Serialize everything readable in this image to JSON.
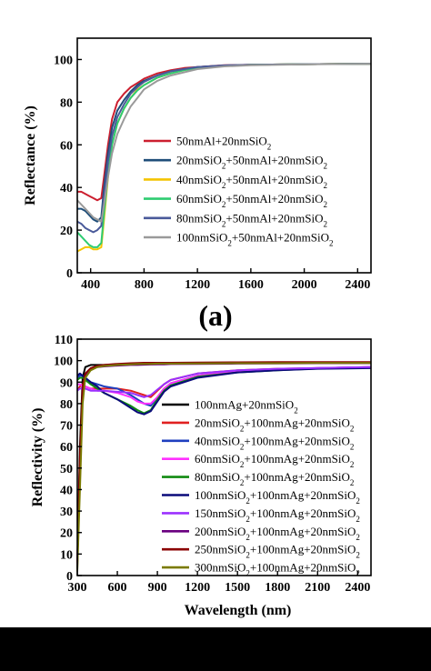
{
  "chart_data": [
    {
      "type": "line",
      "panel_label": "(a)",
      "xlabel": "",
      "ylabel": "Reflectance (%)",
      "xlim": [
        300,
        2500
      ],
      "ylim": [
        0,
        110
      ],
      "x_ticks": [
        400,
        800,
        1200,
        1600,
        2000,
        2400
      ],
      "y_ticks": [
        0,
        20,
        40,
        60,
        80,
        100
      ],
      "grid": false,
      "legend_position": "right",
      "x": [
        300,
        330,
        360,
        390,
        420,
        450,
        480,
        500,
        530,
        560,
        600,
        650,
        700,
        750,
        800,
        900,
        1000,
        1100,
        1200,
        1400,
        1600,
        2000,
        2500
      ],
      "series": [
        {
          "name": "50nmAl+20nmSiO2",
          "color": "#cc1f2f",
          "values": [
            38,
            38,
            37,
            36,
            35,
            34,
            35,
            45,
            60,
            72,
            80,
            84,
            87,
            89,
            91,
            93.5,
            95,
            96,
            96.5,
            97.3,
            97.5,
            97.8,
            98
          ]
        },
        {
          "name": "20nmSiO2+50nmAl+20nmSiO2",
          "color": "#1f4e79",
          "values": [
            30,
            30,
            29,
            27,
            25,
            24,
            26,
            40,
            56,
            68,
            76,
            81,
            85,
            88,
            90,
            92.5,
            94.5,
            95.5,
            96.5,
            97.2,
            97.5,
            97.8,
            98
          ]
        },
        {
          "name": "40nmSiO2+50nmAl+20nmSiO2",
          "color": "#f4c400",
          "values": [
            10,
            11,
            12,
            12,
            11,
            11,
            12,
            25,
            45,
            60,
            70,
            77,
            82,
            86,
            88,
            91.5,
            93.5,
            95,
            96,
            97,
            97.5,
            97.8,
            98
          ]
        },
        {
          "name": "60nmSiO2+50nmAl+20nmSiO2",
          "color": "#2ecc71",
          "values": [
            19,
            17,
            15,
            13,
            12,
            12,
            14,
            28,
            46,
            60,
            70,
            77,
            82,
            85.5,
            88,
            91.5,
            93.5,
            95,
            96,
            97,
            97.5,
            97.8,
            98
          ]
        },
        {
          "name": "80nmSiO2+50nmAl+20nmSiO2",
          "color": "#4a5a9a",
          "values": [
            24,
            23,
            21,
            20,
            19,
            20,
            22,
            36,
            52,
            64,
            73,
            79,
            84,
            87,
            89.5,
            92.5,
            94.5,
            95.5,
            96.5,
            97.2,
            97.5,
            97.8,
            98
          ]
        },
        {
          "name": "100nmSiO2+50nmAl+20nmSiO2",
          "color": "#9a9a9a",
          "values": [
            34,
            32,
            30,
            28,
            26,
            25,
            24,
            32,
            45,
            56,
            65,
            72,
            78,
            82,
            86,
            90,
            92.5,
            94,
            95.5,
            96.8,
            97.3,
            97.7,
            98
          ]
        }
      ]
    },
    {
      "type": "line",
      "panel_label": "(b)",
      "xlabel": "Wavelength (nm)",
      "ylabel": "Reflectivity (%)",
      "xlim": [
        300,
        2500
      ],
      "ylim": [
        0,
        110
      ],
      "x_ticks": [
        300,
        600,
        900,
        1200,
        1500,
        1800,
        2100,
        2400
      ],
      "y_ticks": [
        0,
        10,
        20,
        30,
        40,
        50,
        60,
        70,
        80,
        90,
        100,
        110
      ],
      "grid": false,
      "legend_position": "right",
      "x": [
        300,
        320,
        340,
        360,
        400,
        450,
        500,
        600,
        700,
        750,
        800,
        850,
        900,
        950,
        1000,
        1200,
        1500,
        1800,
        2100,
        2500
      ],
      "series": [
        {
          "name": "100nmAg+20nmSiO2",
          "color": "#000000",
          "values": [
            3,
            60,
            92,
            97,
            98,
            98,
            98,
            98.3,
            98.5,
            98.5,
            98.5,
            98.5,
            98.5,
            98.6,
            98.6,
            98.7,
            98.8,
            98.9,
            98.9,
            99
          ]
        },
        {
          "name": "20nmSiO2+100nmAg+20nmSiO2",
          "color": "#e02020",
          "values": [
            86,
            88,
            89,
            88,
            87,
            87,
            87,
            87,
            86,
            85,
            84,
            83,
            86,
            89,
            91,
            94,
            95.5,
            96.2,
            96.5,
            97
          ]
        },
        {
          "name": "40nmSiO2+100nmAg+20nmSiO2",
          "color": "#1f3fbf",
          "values": [
            92,
            93,
            93,
            92,
            90,
            89,
            88,
            87,
            84,
            82,
            80,
            79,
            83,
            87,
            89.5,
            93,
            95,
            96,
            96.5,
            97
          ]
        },
        {
          "name": "60nmSiO2+100nmAg+20nmSiO2",
          "color": "#ff30ff",
          "values": [
            89,
            89,
            88,
            88,
            87,
            86,
            86,
            85,
            83,
            81,
            80,
            80,
            83,
            87,
            89.5,
            93,
            95,
            96,
            96.5,
            97
          ]
        },
        {
          "name": "80nmSiO2+100nmAg+20nmSiO2",
          "color": "#108a10",
          "values": [
            91,
            92,
            92,
            91,
            89,
            87,
            85,
            82,
            79,
            77,
            75.5,
            77,
            82,
            86,
            88.5,
            92.5,
            94.5,
            95.5,
            96.3,
            96.8
          ]
        },
        {
          "name": "100nmSiO2+100nmAg+20nmSiO2",
          "color": "#0a0a7a",
          "values": [
            93,
            94,
            93,
            92,
            90,
            88,
            85,
            82,
            78,
            76,
            75,
            76.5,
            81,
            85.5,
            88,
            92,
            94.5,
            95.5,
            96.2,
            96.5
          ]
        },
        {
          "name": "150nmSiO2+100nmAg+20nmSiO2",
          "color": "#9b30ff",
          "values": [
            86,
            87,
            87,
            87,
            86,
            86,
            86,
            85.5,
            85,
            84,
            83,
            84,
            86.5,
            89,
            91,
            94,
            95.5,
            96.2,
            96.6,
            97
          ]
        },
        {
          "name": "200nmSiO2+100nmAg+20nmSiO2",
          "color": "#6a0080",
          "values": [
            5,
            50,
            85,
            93,
            96,
            97,
            97.3,
            97.7,
            98,
            98,
            98.1,
            98.2,
            98.3,
            98.3,
            98.4,
            98.5,
            98.6,
            98.7,
            98.8,
            98.8
          ]
        },
        {
          "name": "250nmSiO2+100nmAg+20nmSiO2",
          "color": "#8b0000",
          "values": [
            6,
            55,
            88,
            94,
            96.5,
            97.5,
            98,
            98.5,
            98.8,
            98.9,
            99,
            99,
            99,
            99,
            99,
            99.1,
            99.2,
            99.3,
            99.3,
            99.3
          ]
        },
        {
          "name": "300nmSiO2+100nmAg+20nmSiO2",
          "color": "#7a7a00",
          "values": [
            2,
            40,
            80,
            92,
            95.5,
            97,
            97.5,
            98,
            98.3,
            98.4,
            98.5,
            98.5,
            98.6,
            98.6,
            98.6,
            98.7,
            98.8,
            98.8,
            98.9,
            98.9
          ]
        }
      ]
    }
  ]
}
